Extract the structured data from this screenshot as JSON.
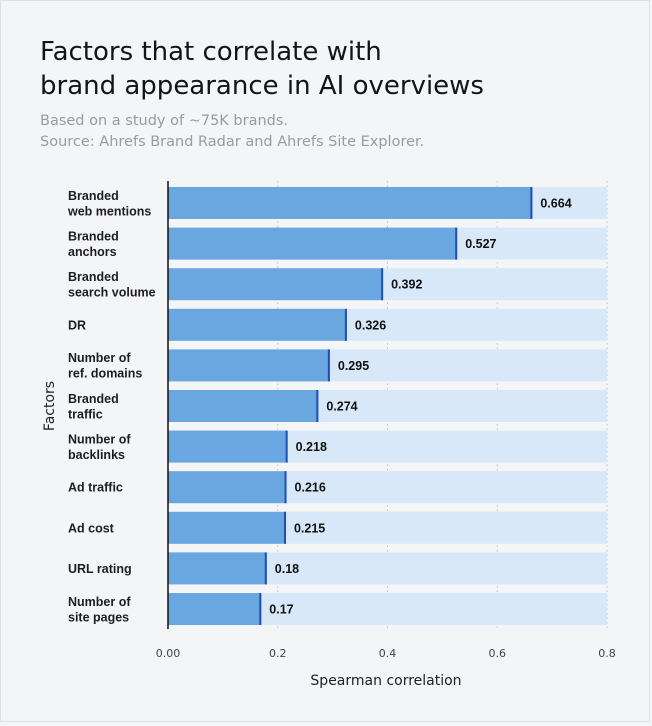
{
  "title": {
    "line1": "Factors that correlate with",
    "line2": "brand appearance in AI overviews"
  },
  "subtitle": {
    "line1": "Based on a study of ~75K brands.",
    "line2": "Source: Ahrefs Brand Radar and Ahrefs Site Explorer."
  },
  "colors": {
    "bar": "#6aa6e0",
    "bar_track": "#d9e8f8",
    "bar_edge": "#1f4fb5",
    "axis": "#111111",
    "grid": "#b9c4d0"
  },
  "chart_data": {
    "type": "bar",
    "orientation": "horizontal",
    "categories": [
      [
        "Branded",
        "web mentions"
      ],
      [
        "Branded",
        "anchors"
      ],
      [
        "Branded",
        "search volume"
      ],
      [
        "DR"
      ],
      [
        "Number of",
        "ref. domains"
      ],
      [
        "Branded",
        "traffic"
      ],
      [
        "Number of",
        "backlinks"
      ],
      [
        "Ad traffic"
      ],
      [
        "Ad cost"
      ],
      [
        "URL rating"
      ],
      [
        "Number of",
        "site pages"
      ]
    ],
    "values": [
      0.664,
      0.527,
      0.392,
      0.326,
      0.295,
      0.274,
      0.218,
      0.216,
      0.215,
      0.18,
      0.17
    ],
    "value_labels": [
      "0.664",
      "0.527",
      "0.392",
      "0.326",
      "0.295",
      "0.274",
      "0.218",
      "0.216",
      "0.215",
      "0.18",
      "0.17"
    ],
    "xlabel": "Spearman correlation",
    "ylabel": "Factors",
    "xlim": [
      0,
      0.8
    ],
    "xticks": [
      0,
      0.2,
      0.4,
      0.6,
      0.8
    ],
    "xtick_labels": [
      "0.00",
      "0.2",
      "0.4",
      "0.6",
      "0.8"
    ],
    "grid": "vertical dotted"
  }
}
